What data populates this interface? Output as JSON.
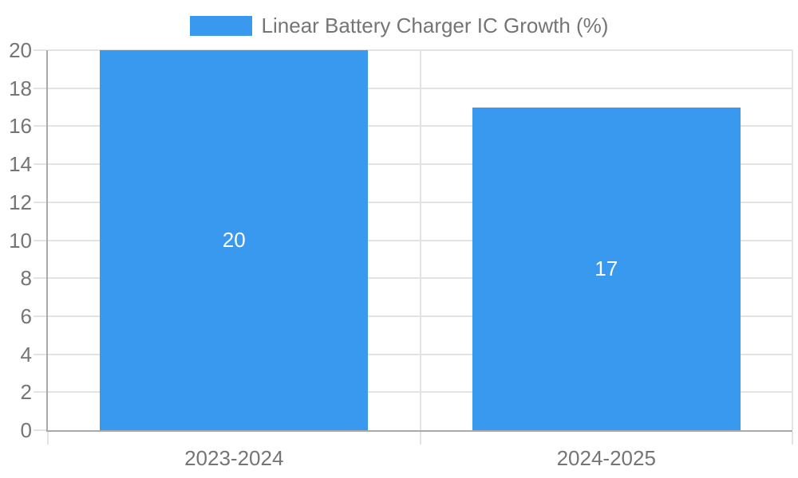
{
  "chart_data": {
    "type": "bar",
    "legend": {
      "label": "Linear Battery Charger IC Growth (%)",
      "position": "top"
    },
    "categories": [
      "2023-2024",
      "2024-2025"
    ],
    "values": [
      20,
      17
    ],
    "value_labels": [
      "20",
      "17"
    ],
    "ylabel": "",
    "xlabel": "",
    "ylim": [
      0,
      20
    ],
    "ytick_step": 2,
    "grid": true,
    "bar_fraction_of_category": 0.72,
    "colors": {
      "bar": "#3999ee",
      "value_label": "#ffffff",
      "grid": "#e3e3e3",
      "axis": "#a9a9a9",
      "text": "#757575",
      "background": "#ffffff"
    }
  }
}
